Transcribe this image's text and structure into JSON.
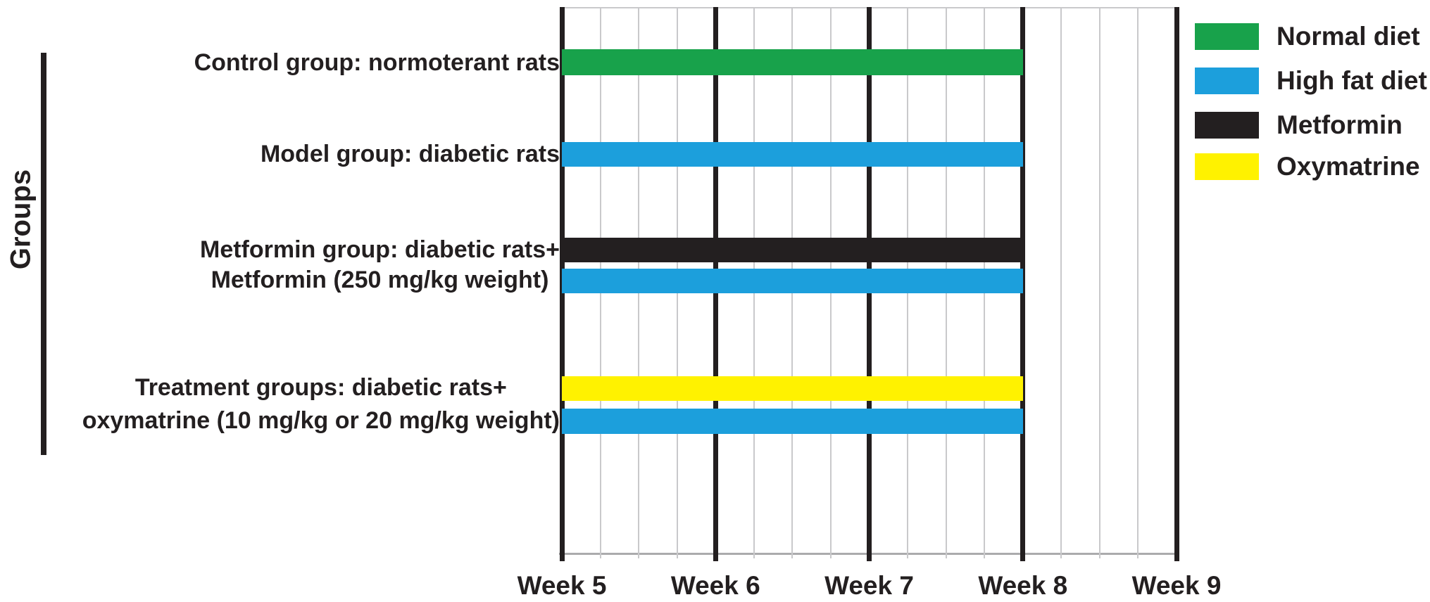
{
  "chart_data": {
    "type": "gantt",
    "title": "",
    "ylabel": "Groups",
    "xlabel": "",
    "x_ticks": [
      "Week 5",
      "Week 6",
      "Week 7",
      "Week 8",
      "Week 9"
    ],
    "x_range_weeks": [
      5,
      9
    ],
    "grid": "vertical; thick black line at each week tick, 3 thin gray minor lines per week interval",
    "legend_position": "top-right",
    "colors": {
      "normal_diet": "#18A24B",
      "high_fat_diet": "#1C9FDC",
      "metformin": "#231F20",
      "oxymatrine": "#FFF200"
    },
    "legend": [
      {
        "label": "Normal diet",
        "color": "#18A24B"
      },
      {
        "label": "High fat diet",
        "color": "#1C9FDC"
      },
      {
        "label": "Metformin",
        "color": "#231F20"
      },
      {
        "label": "Oxymatrine",
        "color": "#FFF200"
      }
    ],
    "rows": [
      {
        "group_label_lines": [
          "Control group: normoterant rats"
        ],
        "bars": [
          {
            "name": "Normal diet",
            "color": "#18A24B",
            "start_week": 5,
            "end_week": 8
          }
        ]
      },
      {
        "group_label_lines": [
          "Model group: diabetic rats"
        ],
        "bars": [
          {
            "name": "High fat diet",
            "color": "#1C9FDC",
            "start_week": 5,
            "end_week": 8
          }
        ]
      },
      {
        "group_label_lines": [
          "Metformin group: diabetic rats+",
          "Metformin (250 mg/kg weight)"
        ],
        "bars": [
          {
            "name": "Metformin",
            "color": "#231F20",
            "start_week": 5,
            "end_week": 8
          },
          {
            "name": "High fat diet",
            "color": "#1C9FDC",
            "start_week": 5,
            "end_week": 8
          }
        ]
      },
      {
        "group_label_lines": [
          "Treatment groups: diabetic rats+",
          "oxymatrine (10 mg/kg or 20 mg/kg weight)"
        ],
        "bars": [
          {
            "name": "Oxymatrine",
            "color": "#FFF200",
            "start_week": 5,
            "end_week": 8
          },
          {
            "name": "High fat diet",
            "color": "#1C9FDC",
            "start_week": 5,
            "end_week": 8
          }
        ]
      }
    ]
  }
}
